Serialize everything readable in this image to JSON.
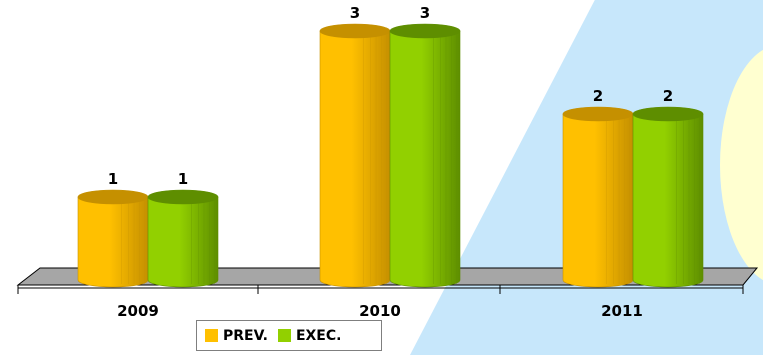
{
  "chart_data": {
    "type": "bar",
    "categories": [
      "2009",
      "2010",
      "2011"
    ],
    "series": [
      {
        "name": "PREV.",
        "values": [
          1,
          3,
          2
        ],
        "color": "#FFC000",
        "dark": "#C59000"
      },
      {
        "name": "EXEC.",
        "values": [
          1,
          3,
          2
        ],
        "color": "#92D000",
        "dark": "#5E8E00"
      }
    ],
    "ylim": [
      0,
      3
    ],
    "data_labels": true,
    "grid": false,
    "legend_position": "bottom",
    "style": "3d-cylinder"
  },
  "colors": {
    "background_watermark_blue": "#BDE3FA",
    "background_watermark_yellow": "#FFFFD0",
    "floor": "#A6A6A6"
  }
}
